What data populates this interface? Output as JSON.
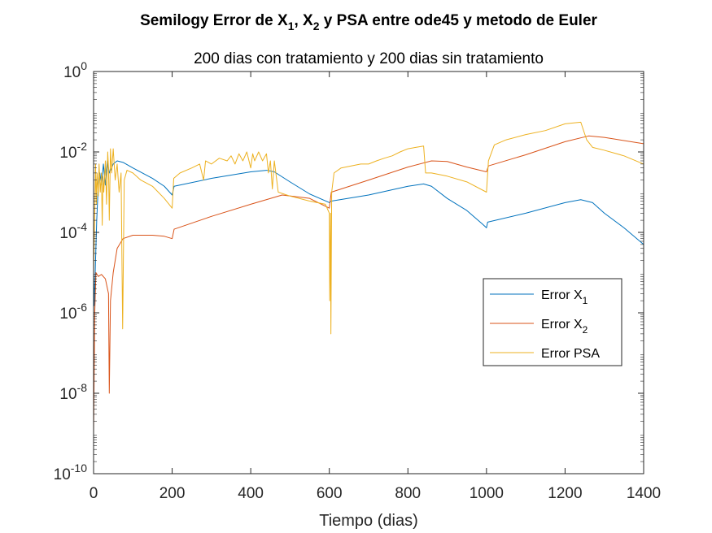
{
  "chart_data": {
    "type": "line",
    "y_scale": "log",
    "title_parts": [
      {
        "t": "Semilogy Error de X",
        "s": "n"
      },
      {
        "t": "1",
        "s": "sub"
      },
      {
        "t": ", X",
        "s": "n"
      },
      {
        "t": "2",
        "s": "sub"
      },
      {
        "t": " y PSA entre ode45 y metodo de Euler",
        "s": "n"
      }
    ],
    "subtitle": "200 dias con tratamiento y 200 dias sin tratamiento",
    "xlabel": "Tiempo (dias)",
    "ylabel": "",
    "xlim": [
      0,
      1400
    ],
    "ylim": [
      1e-10,
      1
    ],
    "x_ticks": [
      0,
      200,
      400,
      600,
      800,
      1000,
      1200,
      1400
    ],
    "x_tick_labels": [
      "0",
      "200",
      "400",
      "600",
      "800",
      "1000",
      "1200",
      "1400"
    ],
    "y_ticks": [
      1e-10,
      1e-08,
      1e-06,
      0.0001,
      0.01,
      1
    ],
    "y_tick_labels": [
      {
        "base": "10",
        "exp": "-10"
      },
      {
        "base": "10",
        "exp": "-8"
      },
      {
        "base": "10",
        "exp": "-6"
      },
      {
        "base": "10",
        "exp": "-4"
      },
      {
        "base": "10",
        "exp": "-2"
      },
      {
        "base": "10",
        "exp": "0"
      }
    ],
    "grid": false,
    "legend_position": "lower-right",
    "legend": [
      {
        "label_parts": [
          {
            "t": "Error X",
            "s": "n"
          },
          {
            "t": "1",
            "s": "sub"
          }
        ],
        "color": "#0072BD"
      },
      {
        "label_parts": [
          {
            "t": "Error X",
            "s": "n"
          },
          {
            "t": "2",
            "s": "sub"
          }
        ],
        "color": "#D95319"
      },
      {
        "label_parts": [
          {
            "t": "Error PSA",
            "s": "n"
          }
        ],
        "color": "#EDB120"
      }
    ],
    "series": [
      {
        "color": "#0072BD",
        "points": [
          [
            0,
            1e-05
          ],
          [
            2,
            1.5e-06
          ],
          [
            5,
            2e-05
          ],
          [
            8,
            0.0002
          ],
          [
            12,
            0.0015
          ],
          [
            16,
            0.003
          ],
          [
            20,
            0.0015
          ],
          [
            25,
            0.005
          ],
          [
            30,
            0.0015
          ],
          [
            35,
            0.006
          ],
          [
            40,
            0.003
          ],
          [
            50,
            0.005
          ],
          [
            60,
            0.006
          ],
          [
            75,
            0.0055
          ],
          [
            100,
            0.004
          ],
          [
            150,
            0.0022
          ],
          [
            180,
            0.0014
          ],
          [
            200,
            0.00085
          ],
          [
            205,
            0.0014
          ],
          [
            300,
            0.0022
          ],
          [
            400,
            0.0032
          ],
          [
            440,
            0.0035
          ],
          [
            460,
            0.0032
          ],
          [
            500,
            0.0018
          ],
          [
            550,
            0.0009
          ],
          [
            600,
            0.00055
          ],
          [
            605,
            0.0006
          ],
          [
            700,
            0.00085
          ],
          [
            800,
            0.0014
          ],
          [
            840,
            0.0016
          ],
          [
            860,
            0.0014
          ],
          [
            900,
            0.0007
          ],
          [
            950,
            0.00035
          ],
          [
            990,
            0.00016
          ],
          [
            1000,
            0.00013
          ],
          [
            1003,
            0.00018
          ],
          [
            1100,
            0.0003
          ],
          [
            1200,
            0.00055
          ],
          [
            1240,
            0.00065
          ],
          [
            1270,
            0.00055
          ],
          [
            1300,
            0.0003
          ],
          [
            1350,
            0.00013
          ],
          [
            1400,
            5e-05
          ]
        ]
      },
      {
        "color": "#D95319",
        "points": [
          [
            0,
            1e-09
          ],
          [
            3,
            1e-06
          ],
          [
            6,
            1e-05
          ],
          [
            12,
            8e-06
          ],
          [
            20,
            9e-06
          ],
          [
            30,
            7e-06
          ],
          [
            38,
            3e-06
          ],
          [
            40,
            1e-08
          ],
          [
            43,
            2e-06
          ],
          [
            50,
            1e-05
          ],
          [
            60,
            4e-05
          ],
          [
            75,
            7e-05
          ],
          [
            100,
            8.5e-05
          ],
          [
            150,
            8.5e-05
          ],
          [
            180,
            8e-05
          ],
          [
            200,
            7e-05
          ],
          [
            205,
            0.00012
          ],
          [
            300,
            0.00025
          ],
          [
            400,
            0.0005
          ],
          [
            480,
            0.00085
          ],
          [
            550,
            0.0007
          ],
          [
            600,
            0.0004
          ],
          [
            605,
            0.001
          ],
          [
            700,
            0.002
          ],
          [
            800,
            0.0042
          ],
          [
            860,
            0.006
          ],
          [
            900,
            0.0058
          ],
          [
            950,
            0.0042
          ],
          [
            1000,
            0.0032
          ],
          [
            1005,
            0.0045
          ],
          [
            1100,
            0.0085
          ],
          [
            1200,
            0.018
          ],
          [
            1260,
            0.025
          ],
          [
            1300,
            0.023
          ],
          [
            1400,
            0.016
          ]
        ]
      },
      {
        "color": "#EDB120",
        "points": [
          [
            0,
            1e-05
          ],
          [
            3,
            0.0003
          ],
          [
            5,
            0.005
          ],
          [
            7,
            0.0005
          ],
          [
            9,
            0.003
          ],
          [
            12,
            0.0008
          ],
          [
            14,
            0.005
          ],
          [
            17,
            0.001
          ],
          [
            20,
            0.003
          ],
          [
            22,
            0.00015
          ],
          [
            24,
            0.0025
          ],
          [
            26,
            0.001
          ],
          [
            30,
            0.006
          ],
          [
            33,
            0.0005
          ],
          [
            36,
            0.01
          ],
          [
            38,
            0.004
          ],
          [
            40,
            0.0002
          ],
          [
            43,
            0.012
          ],
          [
            46,
            0.003
          ],
          [
            50,
            0.012
          ],
          [
            55,
            0.002
          ],
          [
            60,
            0.005
          ],
          [
            65,
            0.001
          ],
          [
            70,
            0.003
          ],
          [
            74,
            4e-07
          ],
          [
            78,
            0.002
          ],
          [
            85,
            0.0035
          ],
          [
            100,
            0.003
          ],
          [
            120,
            0.002
          ],
          [
            150,
            0.0014
          ],
          [
            180,
            0.0007
          ],
          [
            200,
            0.0004
          ],
          [
            204,
            0.0022
          ],
          [
            220,
            0.003
          ],
          [
            250,
            0.004
          ],
          [
            270,
            0.005
          ],
          [
            280,
            0.002
          ],
          [
            285,
            0.006
          ],
          [
            300,
            0.005
          ],
          [
            320,
            0.007
          ],
          [
            340,
            0.006
          ],
          [
            350,
            0.008
          ],
          [
            360,
            0.005
          ],
          [
            370,
            0.009
          ],
          [
            380,
            0.006
          ],
          [
            390,
            0.01
          ],
          [
            400,
            0.004
          ],
          [
            405,
            0.009
          ],
          [
            410,
            0.006
          ],
          [
            420,
            0.01
          ],
          [
            430,
            0.006
          ],
          [
            440,
            0.009
          ],
          [
            445,
            0.003
          ],
          [
            450,
            0.006
          ],
          [
            455,
            0.0012
          ],
          [
            460,
            0.006
          ],
          [
            470,
            0.001
          ],
          [
            500,
            0.0008
          ],
          [
            550,
            0.0006
          ],
          [
            590,
            0.0005
          ],
          [
            600,
            0.0003
          ],
          [
            601,
            2e-06
          ],
          [
            603,
            0.0003
          ],
          [
            604,
            3e-07
          ],
          [
            606,
            0.001
          ],
          [
            612,
            0.003
          ],
          [
            630,
            0.004
          ],
          [
            680,
            0.005
          ],
          [
            700,
            0.005
          ],
          [
            720,
            0.006
          ],
          [
            740,
            0.007
          ],
          [
            760,
            0.008
          ],
          [
            780,
            0.01
          ],
          [
            800,
            0.012
          ],
          [
            820,
            0.013
          ],
          [
            840,
            0.014
          ],
          [
            845,
            0.003
          ],
          [
            860,
            0.003
          ],
          [
            900,
            0.0025
          ],
          [
            950,
            0.0018
          ],
          [
            1000,
            0.001
          ],
          [
            1005,
            0.006
          ],
          [
            1020,
            0.015
          ],
          [
            1050,
            0.02
          ],
          [
            1100,
            0.027
          ],
          [
            1150,
            0.034
          ],
          [
            1200,
            0.05
          ],
          [
            1240,
            0.055
          ],
          [
            1255,
            0.02
          ],
          [
            1270,
            0.013
          ],
          [
            1300,
            0.011
          ],
          [
            1350,
            0.008
          ],
          [
            1400,
            0.005
          ]
        ]
      }
    ]
  }
}
